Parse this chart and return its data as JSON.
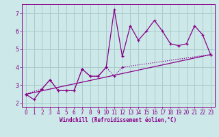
{
  "xlabel": "Windchill (Refroidissement éolien,°C)",
  "xlim": [
    -0.5,
    23.5
  ],
  "ylim": [
    1.8,
    7.5
  ],
  "xticks": [
    0,
    1,
    2,
    3,
    4,
    5,
    6,
    7,
    8,
    9,
    10,
    11,
    12,
    13,
    14,
    15,
    16,
    17,
    18,
    19,
    20,
    21,
    22,
    23
  ],
  "yticks": [
    2,
    3,
    4,
    5,
    6,
    7
  ],
  "background_color": "#cce8e8",
  "grid_color": "#aacccc",
  "line_color": "#880088",
  "line1_x": [
    0,
    1,
    2,
    3,
    4,
    5,
    6,
    7,
    8,
    9,
    10,
    11,
    12,
    13,
    14,
    15,
    16,
    17,
    18,
    19,
    20,
    21,
    22,
    23
  ],
  "line1_y": [
    2.5,
    2.2,
    2.8,
    3.3,
    2.7,
    2.7,
    2.7,
    3.9,
    3.5,
    3.5,
    4.0,
    7.2,
    4.6,
    6.3,
    5.5,
    6.0,
    6.6,
    6.0,
    5.3,
    5.2,
    5.3,
    6.3,
    5.8,
    4.7
  ],
  "line2_x": [
    0,
    2,
    3,
    4,
    5,
    6,
    7,
    8,
    9,
    10,
    11,
    12,
    23
  ],
  "line2_y": [
    2.5,
    2.8,
    3.3,
    2.7,
    2.7,
    2.7,
    3.9,
    3.5,
    3.5,
    4.0,
    3.5,
    4.0,
    4.7
  ],
  "trend_x": [
    0,
    23
  ],
  "trend_y": [
    2.5,
    4.7
  ],
  "label_fontsize": 5.5,
  "tick_fontsize": 5.5
}
